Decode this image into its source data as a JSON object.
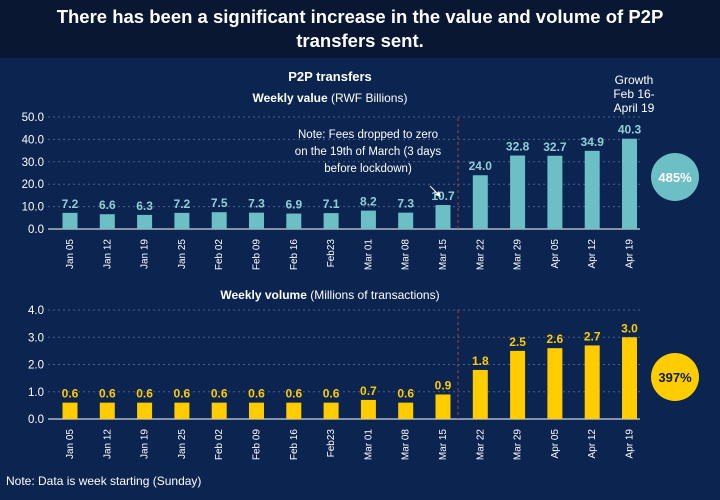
{
  "headline": "There has been a significant increase in the value and volume of P2P transfers sent.",
  "colors": {
    "background": "#0c2450",
    "header_bg": "#0a1733",
    "value_bar": "#6cbfc4",
    "volume_bar": "#ffcc00",
    "label_value": "#8fd0d6",
    "label_volume": "#ffcc00",
    "divider": "#c0392b",
    "gridline": "#4a5f8a"
  },
  "growth": {
    "label": "Growth\nFeb 16-\nApril 19"
  },
  "footnote": "Note: Data is week starting (Sunday)",
  "chart_data": [
    {
      "type": "bar",
      "title": "P2P transfers",
      "subtitle_bold": "Weekly value",
      "subtitle_rest": " (RWF Billions)",
      "categories": [
        "Jan 05",
        "Jan 12",
        "Jan 19",
        "Jan 25",
        "Feb 02",
        "Feb 09",
        "Feb 16",
        "Feb23",
        "Mar 01",
        "Mar 08",
        "Mar 15",
        "Mar 22",
        "Mar 29",
        "Apr 05",
        "Apr 12",
        "Apr 19"
      ],
      "values": [
        7.2,
        6.6,
        6.3,
        7.2,
        7.5,
        7.3,
        6.9,
        7.1,
        8.2,
        7.3,
        10.7,
        24.0,
        32.8,
        32.7,
        34.9,
        40.3
      ],
      "value_labels": [
        "7.2",
        "6.6",
        "6.3",
        "7.2",
        "7.5",
        "7.3",
        "6.9",
        "7.1",
        "8.2",
        "7.3",
        "10.7",
        "24.0",
        "32.8",
        "32.7",
        "34.9",
        "40.3"
      ],
      "ylim": [
        0,
        50
      ],
      "yticks": [
        "0.0",
        "10.0",
        "20.0",
        "30.0",
        "40.0",
        "50.0"
      ],
      "ytick_values": [
        0,
        10,
        20,
        30,
        40,
        50
      ],
      "growth_badge": "485%",
      "annotation": "Note: Fees dropped to zero\non the 19th of March (3 days\nbefore lockdown)"
    },
    {
      "type": "bar",
      "title": "",
      "subtitle_bold": "Weekly volume",
      "subtitle_rest": " (Millions of transactions)",
      "categories": [
        "Jan 05",
        "Jan 12",
        "Jan 19",
        "Jan 25",
        "Feb 02",
        "Feb 09",
        "Feb 16",
        "Feb23",
        "Mar 01",
        "Mar 08",
        "Mar 15",
        "Mar 22",
        "Mar 29",
        "Apr 05",
        "Apr 12",
        "Apr 19"
      ],
      "values": [
        0.6,
        0.6,
        0.6,
        0.6,
        0.6,
        0.6,
        0.6,
        0.6,
        0.7,
        0.6,
        0.9,
        1.8,
        2.5,
        2.6,
        2.7,
        3.0
      ],
      "value_labels": [
        "0.6",
        "0.6",
        "0.6",
        "0.6",
        "0.6",
        "0.6",
        "0.6",
        "0.6",
        "0.7",
        "0.6",
        "0.9",
        "1.8",
        "2.5",
        "2.6",
        "2.7",
        "3.0"
      ],
      "ylim": [
        0,
        4
      ],
      "yticks": [
        "0.0",
        "1.0",
        "2.0",
        "3.0",
        "4.0"
      ],
      "ytick_values": [
        0,
        1,
        2,
        3,
        4
      ],
      "growth_badge": "397%"
    }
  ]
}
